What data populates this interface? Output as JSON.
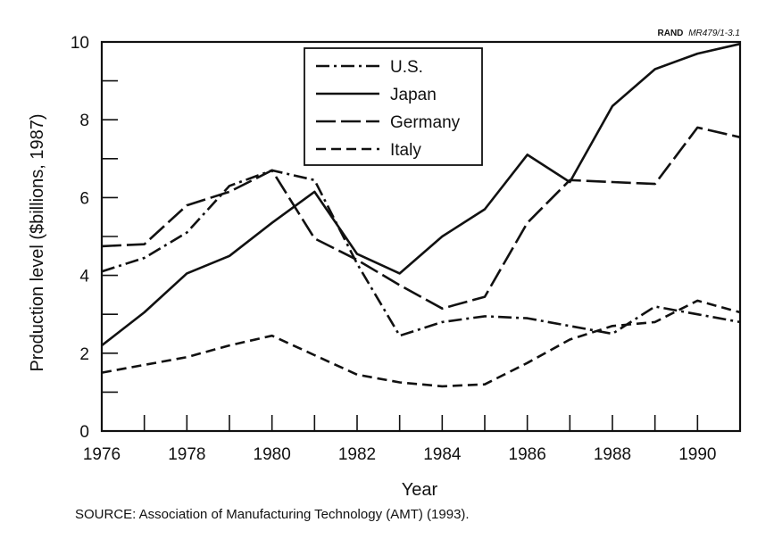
{
  "report_id": {
    "org": "RAND",
    "code": "MR479/1-3.1"
  },
  "source_note": "SOURCE:  Association of Manufacturing Technology (AMT) (1993).",
  "colors": {
    "ink": "#111111",
    "background": "#ffffff"
  },
  "chart_data": {
    "type": "line",
    "title": "",
    "xlabel": "Year",
    "ylabel": "Production level ($billions, 1987)",
    "xlim": [
      1976,
      1991
    ],
    "ylim": [
      0,
      10
    ],
    "x_tick_labels": [
      "1976",
      "1978",
      "1980",
      "1982",
      "1984",
      "1986",
      "1988",
      "1990"
    ],
    "y_tick_labels": [
      "0",
      "2",
      "4",
      "6",
      "8",
      "10"
    ],
    "grid": false,
    "legend_position": "top-center",
    "x": [
      1976,
      1977,
      1978,
      1979,
      1980,
      1981,
      1982,
      1983,
      1984,
      1985,
      1986,
      1987,
      1988,
      1989,
      1990,
      1991
    ],
    "series": [
      {
        "name": "U.S.",
        "line_style": "dash-dot",
        "values": [
          4.1,
          4.45,
          5.1,
          6.3,
          6.7,
          6.45,
          4.3,
          2.45,
          2.8,
          2.95,
          2.9,
          2.7,
          2.5,
          3.2,
          3.0,
          2.8
        ]
      },
      {
        "name": "Japan",
        "line_style": "solid",
        "values": [
          2.2,
          3.05,
          4.05,
          4.5,
          5.35,
          6.15,
          4.55,
          4.05,
          5.0,
          5.7,
          7.1,
          6.4,
          8.35,
          9.3,
          9.7,
          9.95
        ]
      },
      {
        "name": "Germany",
        "line_style": "long-dash",
        "values": [
          4.75,
          4.8,
          5.8,
          6.15,
          6.7,
          4.95,
          4.4,
          3.75,
          3.15,
          3.45,
          5.35,
          6.45,
          6.4,
          6.35,
          7.8,
          7.55
        ]
      },
      {
        "name": "Italy",
        "line_style": "dash",
        "values": [
          1.5,
          1.7,
          1.9,
          2.2,
          2.45,
          1.95,
          1.45,
          1.25,
          1.15,
          1.2,
          1.75,
          2.35,
          2.7,
          2.8,
          3.35,
          3.05
        ]
      }
    ]
  }
}
